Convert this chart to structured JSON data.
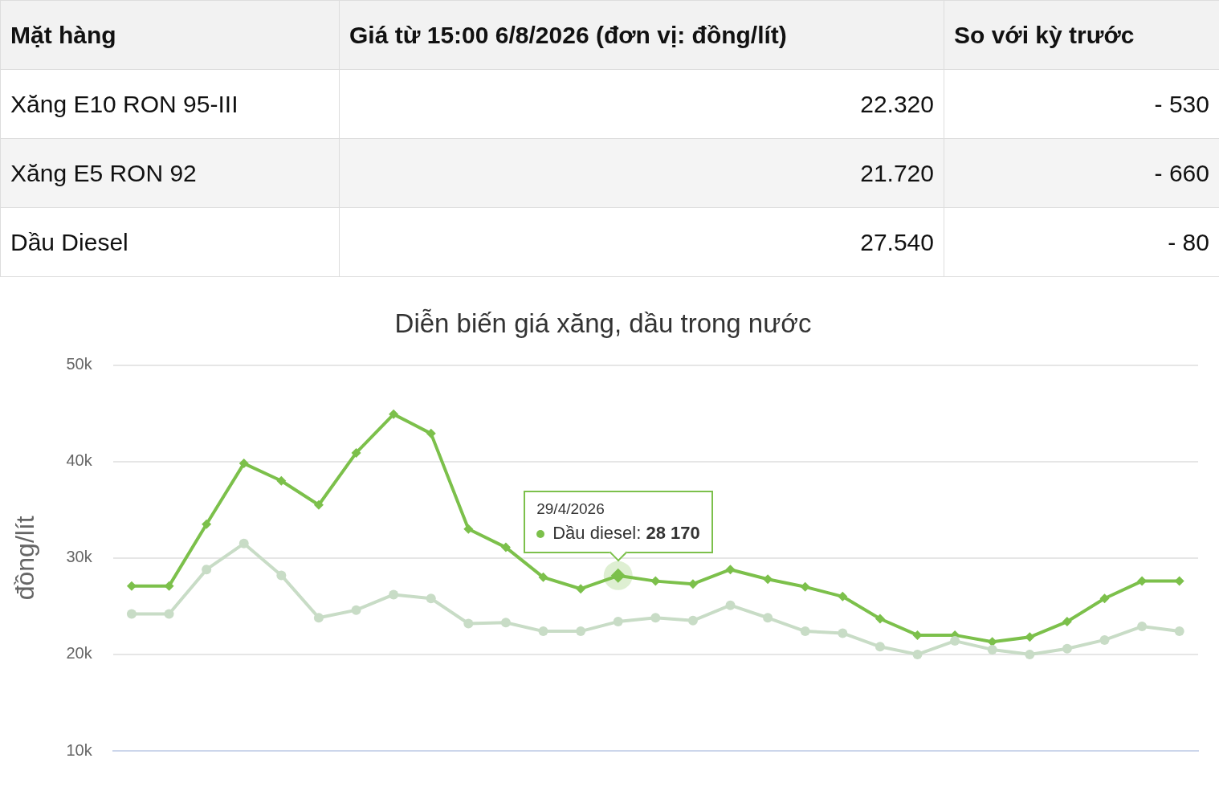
{
  "chart_data": [
    {
      "type": "other",
      "categories": [
        "Mặt hàng",
        "Giá từ 15:00 6/8/2026 (đơn vị: đồng/lít)",
        "So với kỳ trước"
      ],
      "annotations": [
        "Xăng E10 RON 95-III",
        "22.320",
        "- 530",
        "Xăng E5 RON 92",
        "21.720",
        "- 660",
        "Dầu Diesel",
        "27.540",
        "- 80"
      ]
    },
    {
      "type": "line",
      "title": "Diễn biến giá xăng, dầu trong nước",
      "ylabel": "đồng/lít",
      "categories": [
        null,
        null,
        null,
        null,
        null,
        null,
        null,
        null,
        null,
        null,
        null,
        null,
        null,
        null,
        null,
        null,
        null,
        null,
        null,
        null,
        null,
        null,
        null,
        null,
        null,
        null,
        null,
        null,
        null
      ],
      "ylim": [
        10000,
        50000
      ],
      "yticks": [
        {
          "value": 10000,
          "label": "10k"
        },
        {
          "value": 20000,
          "label": "20k"
        },
        {
          "value": 30000,
          "label": "30k"
        },
        {
          "value": 40000,
          "label": "40k"
        },
        {
          "value": 50000,
          "label": "50k"
        }
      ],
      "grid": "y",
      "legend": "top",
      "tick_labels": "y",
      "annotations": [
        "29/4/2026"
      ],
      "series": [
        {
          "color": "#c8dcc6",
          "marker": "circle",
          "values": [
            24200,
            24200,
            28800,
            31500,
            28200,
            23800,
            24600,
            26200,
            25800,
            23200,
            23300,
            22400,
            22400,
            23400,
            23800,
            23500,
            25100,
            23800,
            22400,
            22200,
            20800,
            20000,
            21400,
            20500,
            20000,
            20600,
            21500,
            22900,
            22400
          ]
        },
        {
          "name": "Dầu diesel:",
          "color": "#7cc04b",
          "marker": "diamond",
          "values": [
            27100,
            27100,
            33500,
            39800,
            38000,
            35500,
            40900,
            44900,
            42900,
            33000,
            31100,
            28000,
            26800,
            28170,
            27600,
            27300,
            28800,
            27800,
            27000,
            26000,
            23700,
            22000,
            22000,
            21300,
            21800,
            23400,
            25800,
            27600,
            27600
          ],
          "value_labels": [
            null,
            null,
            null,
            null,
            null,
            null,
            null,
            null,
            null,
            null,
            null,
            null,
            null,
            "28 170",
            null,
            null,
            null,
            null,
            null,
            null,
            null,
            null,
            null,
            null,
            null,
            null,
            null,
            null,
            null
          ]
        }
      ]
    }
  ]
}
